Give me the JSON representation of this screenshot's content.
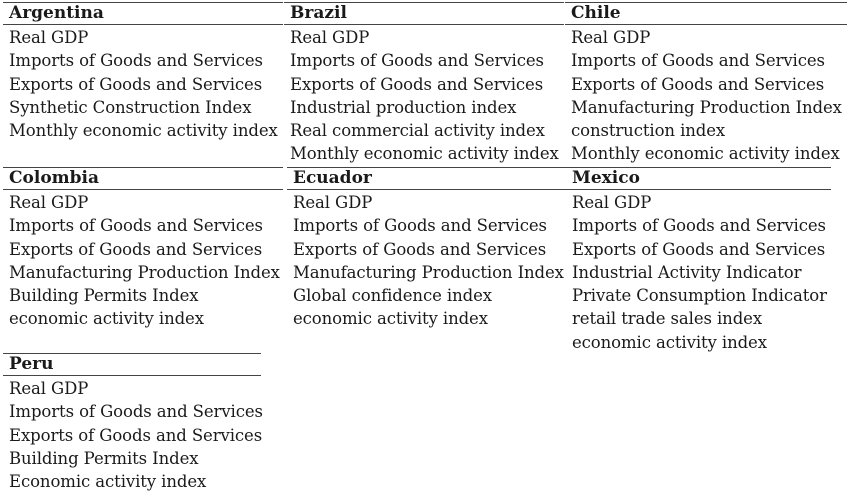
{
  "countries": [
    {
      "name": "Argentina",
      "items": [
        "Real GDP",
        "Imports of Goods and Services",
        "Exports of Goods and Services",
        "Synthetic Construction Index",
        "Monthly economic activity index"
      ]
    },
    {
      "name": "Brazil",
      "items": [
        "Real GDP",
        "Imports of Goods and Services",
        "Exports of Goods and Services",
        "Industrial production index",
        "Real commercial activity index",
        "Monthly economic activity index"
      ]
    },
    {
      "name": "Chile",
      "items": [
        "Real GDP",
        "Imports of Goods and Services",
        "Exports of Goods and Services",
        "Manufacturing Production Index",
        "construction index",
        "Monthly economic activity index"
      ]
    },
    {
      "name": "Colombia",
      "items": [
        "Real GDP",
        "Imports of Goods and Services",
        "Exports of Goods and Services",
        "Manufacturing Production Index",
        "Building Permits Index",
        "economic activity index"
      ]
    },
    {
      "name": "Ecuador",
      "items": [
        "Real GDP",
        "Imports of Goods and Services",
        "Exports of Goods and Services",
        "Manufacturing Production Index",
        "Global confidence index",
        "economic activity index"
      ]
    },
    {
      "name": "Mexico",
      "items": [
        "Real GDP",
        "Imports of Goods and Services",
        "Exports of Goods and Services",
        "Industrial Activity Indicator",
        "Private Consumption Indicator",
        "retail trade sales index",
        "economic activity index"
      ]
    },
    {
      "name": "Peru",
      "items": [
        "Real GDP",
        "Imports of Goods and Services",
        "Exports of Goods and Services",
        "Building Permits Index",
        "Economic activity index"
      ]
    }
  ]
}
